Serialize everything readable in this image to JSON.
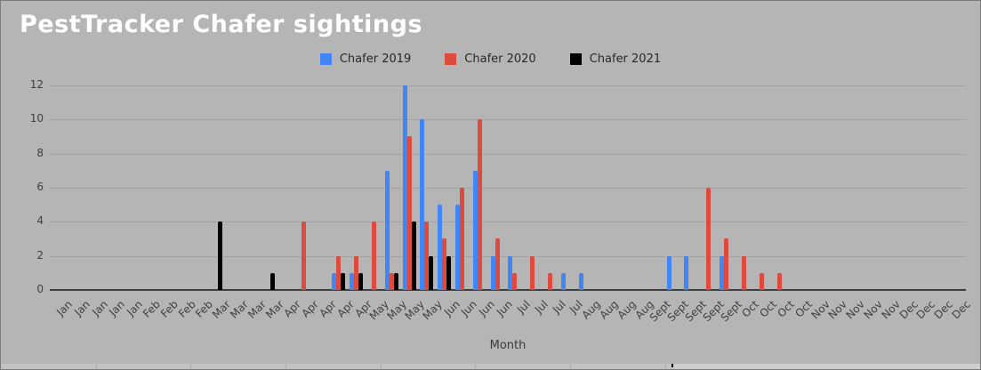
{
  "chart_data": {
    "type": "bar",
    "title": "PestTracker Chafer sightings",
    "xlabel": "Month",
    "ylabel": "",
    "ylim": [
      0,
      12
    ],
    "y_ticks": [
      0,
      2,
      4,
      6,
      8,
      10,
      12
    ],
    "grid": true,
    "legend_position": "top-center",
    "background_color": "#b5b5b5",
    "title_color": "#ffffff",
    "categories": [
      "Jan",
      "Jan",
      "Jan",
      "Jan",
      "Jan",
      "Feb",
      "Feb",
      "Feb",
      "Feb",
      "Mar",
      "Mar",
      "Mar",
      "Mar",
      "Apr",
      "Apr",
      "Apr",
      "Apr",
      "Apr",
      "May",
      "May",
      "May",
      "May",
      "Jun",
      "Jun",
      "Jun",
      "Jun",
      "Jul",
      "Jul",
      "Jul",
      "Jul",
      "Aug",
      "Aug",
      "Aug",
      "Aug",
      "Sept",
      "Sept",
      "Sept",
      "Sept",
      "Sept",
      "Oct",
      "Oct",
      "Oct",
      "Oct",
      "Nov",
      "Nov",
      "Nov",
      "Nov",
      "Nov",
      "Dec",
      "Dec",
      "Dec",
      "Dec"
    ],
    "series": [
      {
        "name": "Chafer 2019",
        "color": "#4285f4",
        "values": [
          0,
          0,
          0,
          0,
          0,
          0,
          0,
          0,
          0,
          0,
          0,
          0,
          0,
          0,
          0,
          0,
          1,
          1,
          0,
          7,
          12,
          10,
          5,
          5,
          7,
          2,
          2,
          0,
          0,
          1,
          1,
          0,
          0,
          0,
          0,
          2,
          2,
          0,
          2,
          0,
          0,
          0,
          0,
          0,
          0,
          0,
          0,
          0,
          0,
          0,
          0,
          0
        ]
      },
      {
        "name": "Chafer 2020",
        "color": "#dd4b3e",
        "values": [
          0,
          0,
          0,
          0,
          0,
          0,
          0,
          0,
          0,
          0,
          0,
          0,
          0,
          0,
          4,
          0,
          2,
          2,
          4,
          1,
          9,
          4,
          3,
          6,
          10,
          3,
          1,
          2,
          1,
          0,
          0,
          0,
          0,
          0,
          0,
          0,
          0,
          6,
          3,
          2,
          1,
          1,
          0,
          0,
          0,
          0,
          0,
          0,
          0,
          0,
          0,
          0
        ]
      },
      {
        "name": "Chafer 2021",
        "color": "#000000",
        "values": [
          0,
          0,
          0,
          0,
          0,
          0,
          0,
          0,
          0,
          4,
          0,
          0,
          1,
          0,
          0,
          0,
          1,
          1,
          0,
          1,
          4,
          2,
          2,
          0,
          0,
          0,
          0,
          0,
          0,
          0,
          0,
          0,
          0,
          0,
          0,
          0,
          0,
          0,
          0,
          0,
          0,
          0,
          0,
          0,
          0,
          0,
          0,
          0,
          0,
          0,
          0,
          0
        ]
      }
    ]
  }
}
